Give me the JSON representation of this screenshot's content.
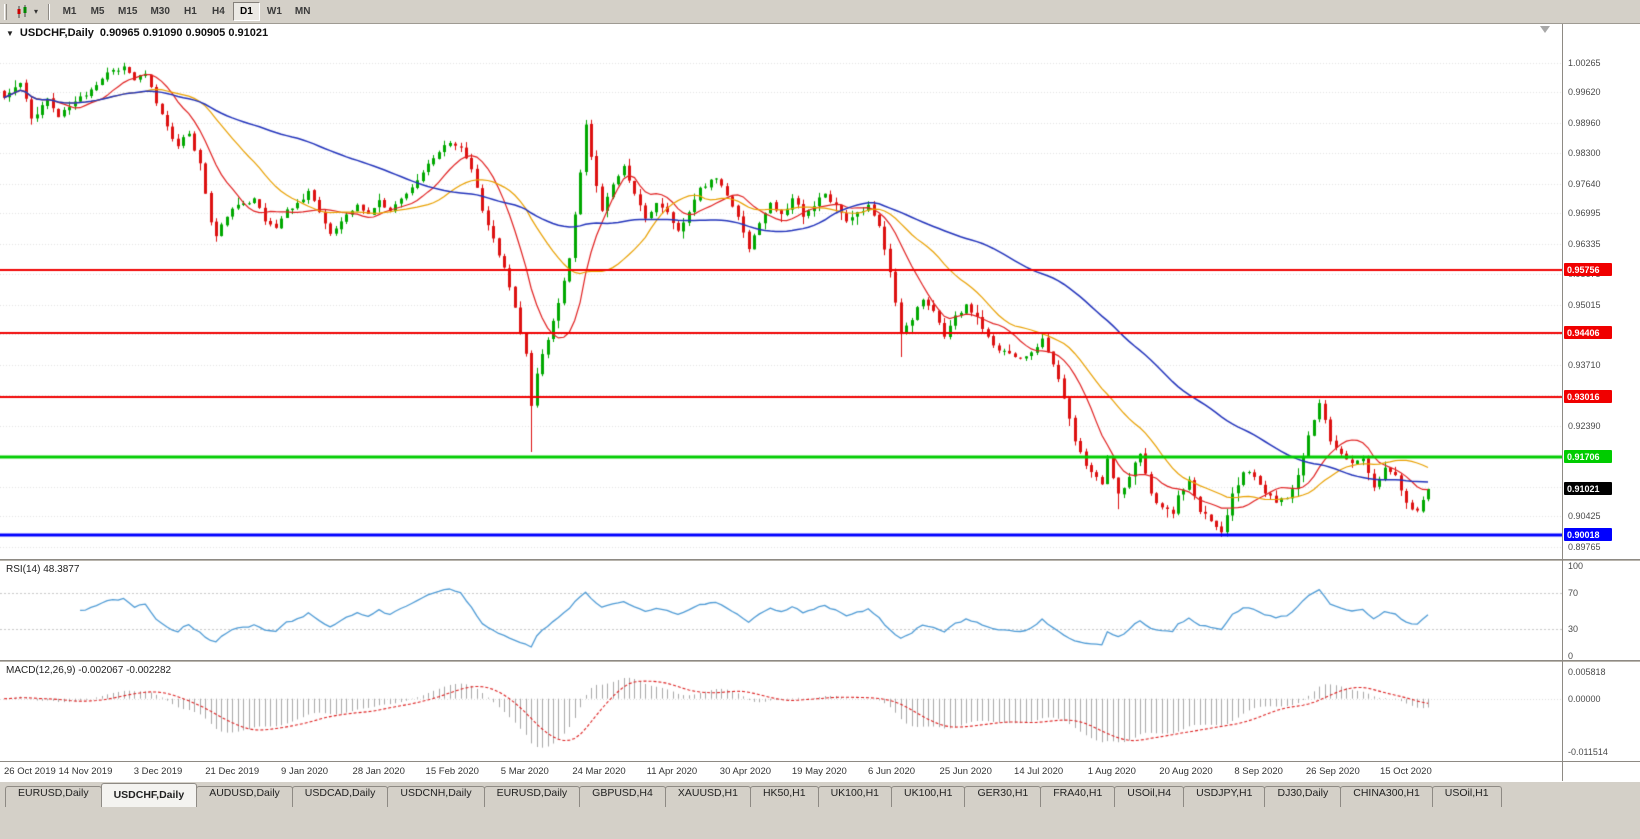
{
  "toolbar": {
    "timeframes": [
      {
        "label": "M1",
        "active": false
      },
      {
        "label": "M5",
        "active": false
      },
      {
        "label": "M15",
        "active": false
      },
      {
        "label": "M30",
        "active": false
      },
      {
        "label": "H1",
        "active": false
      },
      {
        "label": "H4",
        "active": false
      },
      {
        "label": "D1",
        "active": true
      },
      {
        "label": "W1",
        "active": false
      },
      {
        "label": "MN",
        "active": false
      }
    ]
  },
  "chart": {
    "title": "USDCHF,Daily",
    "ohlc": "0.90965 0.91090 0.90905 0.91021",
    "price_range": [
      0.895,
      1.011
    ],
    "price_axis_labels": [
      "1.00265",
      "0.99620",
      "0.98960",
      "0.98300",
      "0.97640",
      "0.96995",
      "0.96335",
      "0.95675",
      "0.95015",
      "0.94370",
      "0.93710",
      "0.93050",
      "0.92390",
      "0.91730",
      "0.91070",
      "0.90425",
      "0.89765"
    ],
    "hlines": [
      {
        "price": 0.95756,
        "label": "0.95756",
        "color": "#f00000",
        "width": 2
      },
      {
        "price": 0.94406,
        "label": "0.94406",
        "color": "#f00000",
        "width": 2
      },
      {
        "price": 0.93016,
        "label": "0.93016",
        "color": "#f00000",
        "width": 2
      },
      {
        "price": 0.91706,
        "label": "0.91706",
        "color": "#00cc00",
        "width": 3
      },
      {
        "price": 0.90018,
        "label": "0.90018",
        "color": "#0000ff",
        "width": 3
      }
    ],
    "last_price": {
      "value": 0.91021,
      "label": "0.91021",
      "color": "#000000"
    },
    "dates": [
      "26 Oct 2019",
      "14 Nov 2019",
      "3 Dec 2019",
      "21 Dec 2019",
      "9 Jan 2020",
      "28 Jan 2020",
      "15 Feb 2020",
      "5 Mar 2020",
      "24 Mar 2020",
      "11 Apr 2020",
      "30 Apr 2020",
      "19 May 2020",
      "6 Jun 2020",
      "25 Jun 2020",
      "14 Jul 2020",
      "1 Aug 2020",
      "20 Aug 2020",
      "8 Sep 2020",
      "26 Sep 2020",
      "15 Oct 2020"
    ]
  },
  "indicators": {
    "rsi": {
      "label": "RSI(14) 48.3877",
      "period": 14,
      "current": 48.3877,
      "range": [
        0,
        100
      ],
      "levels": [
        70,
        30
      ],
      "scale_labels": [
        {
          "v": 100,
          "t": "100"
        },
        {
          "v": 70,
          "t": "70"
        },
        {
          "v": 30,
          "t": "30"
        },
        {
          "v": 0,
          "t": "0"
        }
      ],
      "color": "#4f9bd5"
    },
    "macd": {
      "label": "MACD(12,26,9) -0.002067 -0.002282",
      "fast": 12,
      "slow": 26,
      "signal": 9,
      "current": -0.002067,
      "signal_current": -0.002282,
      "range": [
        -0.0125,
        0.0068
      ],
      "scale_labels": [
        {
          "v": 0.005818,
          "t": "0.005818"
        },
        {
          "v": 0,
          "t": "0.00000"
        },
        {
          "v": -0.011514,
          "t": "-0.011514"
        }
      ],
      "hist_color": "#a8a8a8",
      "signal_color": "#dd2222"
    }
  },
  "tabs": [
    {
      "label": "EURUSD,Daily",
      "active": false
    },
    {
      "label": "USDCHF,Daily",
      "active": true
    },
    {
      "label": "AUDUSD,Daily",
      "active": false
    },
    {
      "label": "USDCAD,Daily",
      "active": false
    },
    {
      "label": "USDCNH,Daily",
      "active": false
    },
    {
      "label": "EURUSD,Daily",
      "active": false
    },
    {
      "label": "GBPUSD,H4",
      "active": false
    },
    {
      "label": "XAUUSD,H1",
      "active": false
    },
    {
      "label": "HK50,H1",
      "active": false
    },
    {
      "label": "UK100,H1",
      "active": false
    },
    {
      "label": "UK100,H1",
      "active": false
    },
    {
      "label": "GER30,H1",
      "active": false
    },
    {
      "label": "FRA40,H1",
      "active": false
    },
    {
      "label": "USOil,H4",
      "active": false
    },
    {
      "label": "USDJPY,H1",
      "active": false
    },
    {
      "label": "DJ30,Daily",
      "active": false
    },
    {
      "label": "CHINA300,H1",
      "active": false
    },
    {
      "label": "USOil,H1",
      "active": false
    }
  ],
  "chart_data": {
    "type": "candlestick",
    "symbol": "USDCHF",
    "timeframe": "Daily",
    "candle_count": 263,
    "seed": 11,
    "noise": 0.0016,
    "bull_color": "#00a800",
    "bear_color": "#dd1111",
    "ma": [
      {
        "period": 10,
        "color": "#e02020"
      },
      {
        "period": 22,
        "color": "#e8a000"
      },
      {
        "period": 55,
        "color": "#2233bb"
      }
    ],
    "keyframes": [
      [
        0,
        0.995
      ],
      [
        3,
        0.9982
      ],
      [
        5,
        0.9905
      ],
      [
        8,
        0.9948
      ],
      [
        10,
        0.9908
      ],
      [
        13,
        0.9942
      ],
      [
        16,
        0.9968
      ],
      [
        19,
        1.0005
      ],
      [
        22,
        1.0018
      ],
      [
        24,
        0.9988
      ],
      [
        26,
        1.0002
      ],
      [
        28,
        0.9938
      ],
      [
        30,
        0.9888
      ],
      [
        32,
        0.9845
      ],
      [
        34,
        0.9872
      ],
      [
        36,
        0.9808
      ],
      [
        38,
        0.968
      ],
      [
        39,
        0.965
      ],
      [
        41,
        0.9692
      ],
      [
        43,
        0.9718
      ],
      [
        46,
        0.9732
      ],
      [
        48,
        0.9682
      ],
      [
        50,
        0.9668
      ],
      [
        52,
        0.9708
      ],
      [
        54,
        0.9722
      ],
      [
        56,
        0.9748
      ],
      [
        58,
        0.9702
      ],
      [
        60,
        0.9655
      ],
      [
        62,
        0.9682
      ],
      [
        65,
        0.9718
      ],
      [
        67,
        0.9698
      ],
      [
        69,
        0.9728
      ],
      [
        71,
        0.9705
      ],
      [
        74,
        0.9742
      ],
      [
        77,
        0.9788
      ],
      [
        80,
        0.9832
      ],
      [
        82,
        0.9852
      ],
      [
        84,
        0.9842
      ],
      [
        86,
        0.9795
      ],
      [
        88,
        0.9705
      ],
      [
        90,
        0.9645
      ],
      [
        92,
        0.9582
      ],
      [
        94,
        0.9495
      ],
      [
        96,
        0.9395
      ],
      [
        97,
        0.9282
      ],
      [
        98,
        0.9352
      ],
      [
        100,
        0.9425
      ],
      [
        102,
        0.9505
      ],
      [
        104,
        0.9602
      ],
      [
        106,
        0.9788
      ],
      [
        107,
        0.9892
      ],
      [
        108,
        0.9822
      ],
      [
        110,
        0.9705
      ],
      [
        112,
        0.9762
      ],
      [
        114,
        0.9802
      ],
      [
        116,
        0.9742
      ],
      [
        118,
        0.9688
      ],
      [
        120,
        0.9722
      ],
      [
        122,
        0.9702
      ],
      [
        124,
        0.9662
      ],
      [
        126,
        0.9702
      ],
      [
        128,
        0.9755
      ],
      [
        131,
        0.9775
      ],
      [
        133,
        0.9738
      ],
      [
        135,
        0.9692
      ],
      [
        137,
        0.9622
      ],
      [
        139,
        0.9678
      ],
      [
        141,
        0.9722
      ],
      [
        143,
        0.9698
      ],
      [
        145,
        0.9732
      ],
      [
        147,
        0.9692
      ],
      [
        149,
        0.9715
      ],
      [
        151,
        0.9742
      ],
      [
        153,
        0.9718
      ],
      [
        155,
        0.9682
      ],
      [
        157,
        0.9702
      ],
      [
        159,
        0.9718
      ],
      [
        161,
        0.9672
      ],
      [
        163,
        0.9572
      ],
      [
        165,
        0.9442
      ],
      [
        167,
        0.9468
      ],
      [
        169,
        0.9512
      ],
      [
        171,
        0.9488
      ],
      [
        173,
        0.9432
      ],
      [
        175,
        0.9478
      ],
      [
        177,
        0.9502
      ],
      [
        179,
        0.9475
      ],
      [
        181,
        0.9432
      ],
      [
        183,
        0.9402
      ],
      [
        186,
        0.9388
      ],
      [
        189,
        0.9398
      ],
      [
        191,
        0.9428
      ],
      [
        193,
        0.9372
      ],
      [
        195,
        0.9298
      ],
      [
        197,
        0.9205
      ],
      [
        199,
        0.9152
      ],
      [
        201,
        0.9128
      ],
      [
        202,
        0.9112
      ],
      [
        203,
        0.9168
      ],
      [
        205,
        0.9092
      ],
      [
        207,
        0.9128
      ],
      [
        209,
        0.9178
      ],
      [
        211,
        0.9092
      ],
      [
        213,
        0.9062
      ],
      [
        215,
        0.9048
      ],
      [
        216,
        0.9088
      ],
      [
        218,
        0.9122
      ],
      [
        220,
        0.9052
      ],
      [
        222,
        0.9032
      ],
      [
        224,
        0.9008
      ],
      [
        226,
        0.9092
      ],
      [
        228,
        0.9138
      ],
      [
        230,
        0.9128
      ],
      [
        232,
        0.9092
      ],
      [
        234,
        0.9072
      ],
      [
        236,
        0.9082
      ],
      [
        238,
        0.9132
      ],
      [
        240,
        0.9218
      ],
      [
        242,
        0.9288
      ],
      [
        244,
        0.9205
      ],
      [
        246,
        0.9178
      ],
      [
        248,
        0.9158
      ],
      [
        250,
        0.9168
      ],
      [
        252,
        0.9105
      ],
      [
        254,
        0.9148
      ],
      [
        256,
        0.9132
      ],
      [
        258,
        0.9072
      ],
      [
        260,
        0.9055
      ],
      [
        261,
        0.9078
      ],
      [
        262,
        0.9102
      ]
    ],
    "low_overrides": [
      [
        39,
        0.9638
      ],
      [
        97,
        0.9182
      ],
      [
        165,
        0.9388
      ],
      [
        205,
        0.9058
      ],
      [
        224,
        0.8998
      ]
    ],
    "high_overrides": [
      [
        22,
        1.0026
      ],
      [
        107,
        0.9902
      ],
      [
        242,
        0.9296
      ]
    ]
  }
}
